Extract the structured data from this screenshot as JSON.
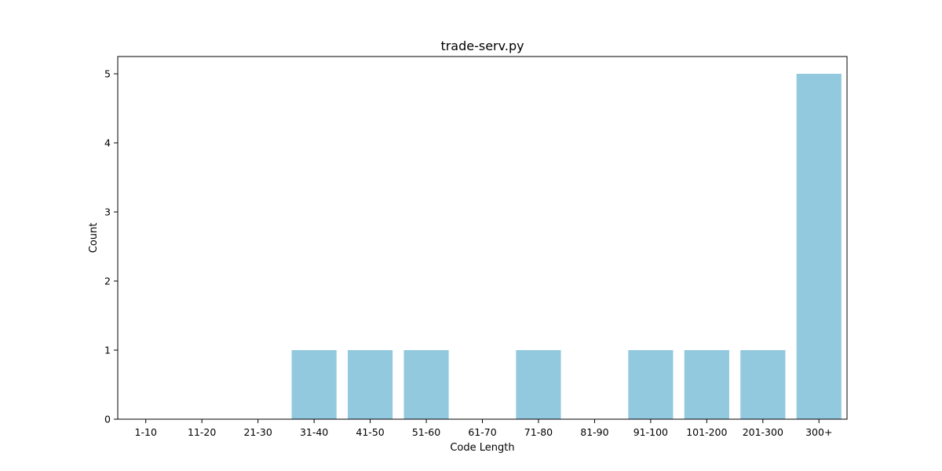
{
  "chart_data": {
    "type": "bar",
    "title": "trade-serv.py",
    "xlabel": "Code Length",
    "ylabel": "Count",
    "categories": [
      "1-10",
      "11-20",
      "21-30",
      "31-40",
      "41-50",
      "51-60",
      "61-70",
      "71-80",
      "81-90",
      "91-100",
      "101-200",
      "201-300",
      "300+"
    ],
    "values": [
      0,
      0,
      0,
      1,
      1,
      1,
      0,
      1,
      0,
      1,
      1,
      1,
      5
    ],
    "yticks": [
      0,
      1,
      2,
      3,
      4,
      5
    ],
    "ylim": [
      0,
      5.25
    ],
    "bar_color": "#92c9de",
    "grid": false,
    "legend": "none"
  }
}
